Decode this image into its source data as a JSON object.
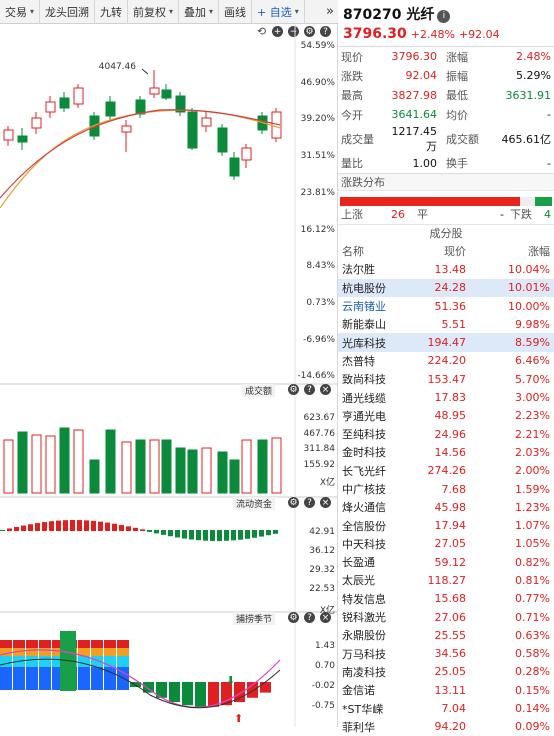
{
  "toolbar": {
    "items": [
      {
        "label": "交易",
        "caret": "▾"
      },
      {
        "label": "龙头回溯",
        "caret": ""
      },
      {
        "label": "九转",
        "caret": ""
      },
      {
        "label": "前复权",
        "caret": "▾"
      },
      {
        "label": "叠加",
        "caret": "▾"
      },
      {
        "label": "画线",
        "caret": ""
      },
      {
        "label": "+ 自选",
        "caret": "▾"
      }
    ],
    "more": "»"
  },
  "price_pane": {
    "labels": [
      "54.59%",
      "46.90%",
      "39.20%",
      "31.51%",
      "23.81%",
      "16.12%",
      "8.43%",
      "0.73%",
      "-6.96%",
      "-14.66%"
    ],
    "peak_label": "4047.46"
  },
  "volume_pane": {
    "title": "成交额",
    "labels": [
      "623.67",
      "467.76",
      "311.84",
      "155.92",
      "X亿"
    ]
  },
  "flow_pane": {
    "title": "流动资金",
    "labels": [
      "42.91",
      "36.12",
      "29.32",
      "22.53",
      "X亿"
    ]
  },
  "cycle_pane": {
    "title": "捕捞季节",
    "labels": [
      "1.43",
      "0.70",
      "-0.02",
      "-0.75"
    ]
  },
  "header": {
    "code": "870270 光纤",
    "info_icon": "i",
    "price": "3796.30",
    "change_pct": "+2.48%",
    "change": "+92.04"
  },
  "stats": [
    {
      "k": "现价",
      "v": "3796.30",
      "vc": "red",
      "k2": "涨幅",
      "v2": "2.48%",
      "v2c": "red"
    },
    {
      "k": "涨跌",
      "v": "92.04",
      "vc": "red",
      "k2": "振幅",
      "v2": "5.29%",
      "v2c": "blk"
    },
    {
      "k": "最高",
      "v": "3827.98",
      "vc": "red",
      "k2": "最低",
      "v2": "3631.91",
      "v2c": "green"
    },
    {
      "k": "今开",
      "v": "3641.64",
      "vc": "green",
      "k2": "均价",
      "v2": "-",
      "v2c": "blk"
    },
    {
      "k": "成交量",
      "v": "1217.45万",
      "vc": "blk",
      "k2": "成交额",
      "v2": "465.61亿",
      "v2c": "blk"
    },
    {
      "k": "量比",
      "v": "1.00",
      "vc": "blk",
      "k2": "换手",
      "v2": "-",
      "v2c": "blk"
    }
  ],
  "dist": {
    "title": "涨跌分布",
    "up_label": "上涨",
    "up": "26",
    "flat_label": "平",
    "flat": "-",
    "down_label": "下跌",
    "down": "4"
  },
  "components": {
    "title": "成分股",
    "headers": [
      "名称",
      "现价",
      "涨幅"
    ],
    "rows": [
      {
        "name": "法尔胜",
        "price": "13.48",
        "chg": "10.04%",
        "hl": false,
        "blue": false
      },
      {
        "name": "杭电股份",
        "price": "24.28",
        "chg": "10.01%",
        "hl": true,
        "blue": false
      },
      {
        "name": "云南锗业",
        "price": "51.36",
        "chg": "10.00%",
        "hl": false,
        "blue": true
      },
      {
        "name": "新能泰山",
        "price": "5.51",
        "chg": "9.98%",
        "hl": false,
        "blue": false
      },
      {
        "name": "光库科技",
        "price": "194.47",
        "chg": "8.59%",
        "hl": true,
        "blue": false
      },
      {
        "name": "杰普特",
        "price": "224.20",
        "chg": "6.46%",
        "hl": false,
        "blue": false
      },
      {
        "name": "致尚科技",
        "price": "153.47",
        "chg": "5.70%",
        "hl": false,
        "blue": false
      },
      {
        "name": "通光线缆",
        "price": "17.83",
        "chg": "3.00%",
        "hl": false,
        "blue": false
      },
      {
        "name": "亨通光电",
        "price": "48.95",
        "chg": "2.23%",
        "hl": false,
        "blue": false
      },
      {
        "name": "至纯科技",
        "price": "24.96",
        "chg": "2.21%",
        "hl": false,
        "blue": false
      },
      {
        "name": "金时科技",
        "price": "14.56",
        "chg": "2.03%",
        "hl": false,
        "blue": false
      },
      {
        "name": "长飞光纤",
        "price": "274.26",
        "chg": "2.00%",
        "hl": false,
        "blue": false
      },
      {
        "name": "中广核技",
        "price": "7.68",
        "chg": "1.59%",
        "hl": false,
        "blue": false
      },
      {
        "name": "烽火通信",
        "price": "45.98",
        "chg": "1.23%",
        "hl": false,
        "blue": false
      },
      {
        "name": "全信股份",
        "price": "17.94",
        "chg": "1.07%",
        "hl": false,
        "blue": false
      },
      {
        "name": "中天科技",
        "price": "27.05",
        "chg": "1.05%",
        "hl": false,
        "blue": false
      },
      {
        "name": "长盈通",
        "price": "59.12",
        "chg": "0.82%",
        "hl": false,
        "blue": false
      },
      {
        "name": "太辰光",
        "price": "118.27",
        "chg": "0.81%",
        "hl": false,
        "blue": false
      },
      {
        "name": "特发信息",
        "price": "15.68",
        "chg": "0.77%",
        "hl": false,
        "blue": false
      },
      {
        "name": "锐科激光",
        "price": "27.06",
        "chg": "0.71%",
        "hl": false,
        "blue": false
      },
      {
        "name": "永鼎股份",
        "price": "25.55",
        "chg": "0.63%",
        "hl": false,
        "blue": false
      },
      {
        "name": "万马科技",
        "price": "34.56",
        "chg": "0.58%",
        "hl": false,
        "blue": false
      },
      {
        "name": "南凌科技",
        "price": "25.05",
        "chg": "0.28%",
        "hl": false,
        "blue": false
      },
      {
        "name": "金信诺",
        "price": "13.11",
        "chg": "0.15%",
        "hl": false,
        "blue": false
      },
      {
        "name": "*ST华嵘",
        "price": "7.04",
        "chg": "0.14%",
        "hl": false,
        "blue": false
      },
      {
        "name": "菲利华",
        "price": "94.20",
        "chg": "0.09%",
        "hl": false,
        "blue": false
      }
    ]
  },
  "colors": {
    "up": "#e02020",
    "down": "#0a8a3a",
    "ma1": "#e8a030",
    "ma2": "#d04040",
    "highlight": "#dde8f8"
  }
}
